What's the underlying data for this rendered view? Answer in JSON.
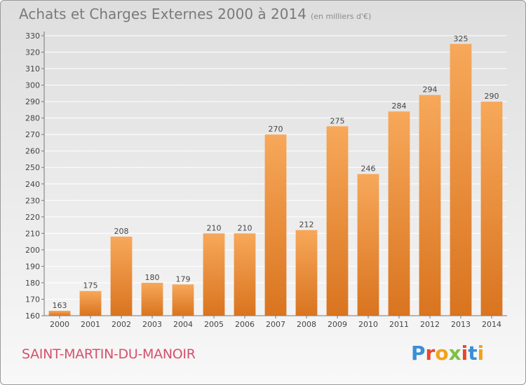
{
  "header": {
    "title": "Achats et Charges Externes 2000 à 2014",
    "subtitle": "(en milliers d'€)"
  },
  "footer": {
    "commune": "SAINT-MARTIN-DU-MANOIR",
    "brand": "Proxiti",
    "brand_colors": [
      "#3a8fd6",
      "#e8472c",
      "#f2a21d",
      "#7cc242",
      "#e8472c",
      "#3a8fd6",
      "#f2a21d"
    ]
  },
  "colors": {
    "bar_top": "#f7a85a",
    "bar_bottom": "#d9741f",
    "grid": "#ffffff",
    "axis_text": "#444444"
  },
  "chart_data": {
    "type": "bar",
    "title": "Achats et Charges Externes 2000 à 2014",
    "subtitle": "(en milliers d'€)",
    "categories": [
      "2000",
      "2001",
      "2002",
      "2003",
      "2004",
      "2005",
      "2006",
      "2007",
      "2008",
      "2009",
      "2010",
      "2011",
      "2012",
      "2013",
      "2014"
    ],
    "values": [
      163,
      175,
      208,
      180,
      179,
      210,
      210,
      270,
      212,
      275,
      246,
      284,
      294,
      325,
      290
    ],
    "ylim": [
      160,
      330
    ],
    "yticks": [
      160,
      170,
      180,
      190,
      200,
      210,
      220,
      230,
      240,
      250,
      260,
      270,
      280,
      290,
      300,
      310,
      320,
      330
    ],
    "grid": true,
    "data_labels": true,
    "xlabel": "",
    "ylabel": ""
  }
}
